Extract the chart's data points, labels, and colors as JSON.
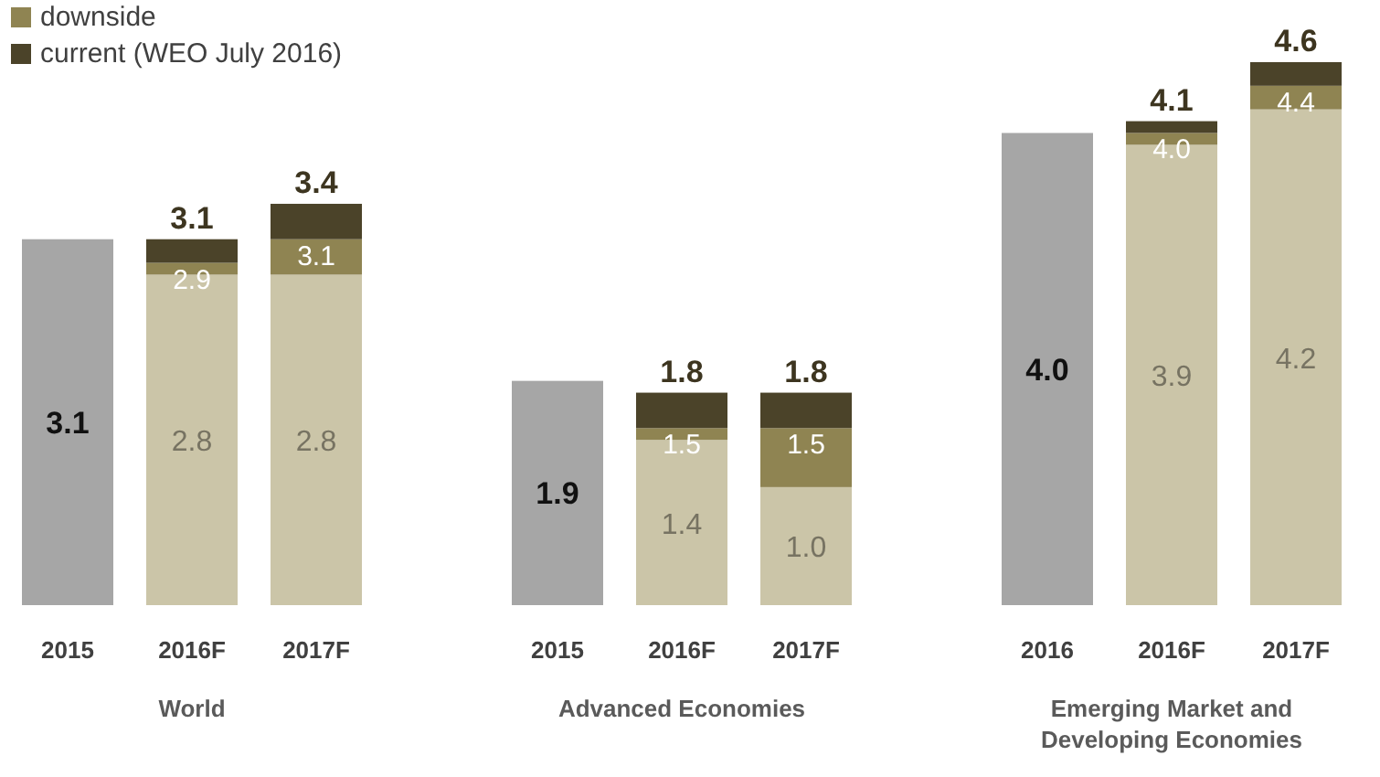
{
  "chart_data": [
    {
      "type": "bar",
      "stacked": true,
      "xlabel": "World",
      "categories": [
        "2015",
        "2016F",
        "2017F"
      ],
      "tick_labels": "x",
      "legend": "top left",
      "series": [
        {
          "color": "#a6a6a6",
          "values": [
            3.1,
            null,
            null
          ],
          "value_labels": [
            "3.1",
            null,
            null
          ]
        },
        {
          "color": "#cbc5a8",
          "values": [
            null,
            2.8,
            2.8
          ],
          "value_labels": [
            null,
            "2.8",
            "2.8"
          ]
        },
        {
          "name": "downside",
          "color": "#8f8452",
          "values": [
            null,
            0.1,
            0.3
          ]
        },
        {
          "name": "current (WEO July 2016)",
          "color": "#4b4329",
          "values": [
            null,
            0.2,
            0.3
          ]
        }
      ],
      "annotations": [
        {
          "text": "2.9",
          "x": "2016F",
          "y": 2.9
        },
        {
          "text": "3.1",
          "x": "2017F",
          "y": 3.1
        }
      ],
      "totals": [
        null,
        "3.1",
        "3.4"
      ]
    },
    {
      "type": "bar",
      "stacked": true,
      "xlabel": "Advanced Economies",
      "categories": [
        "2015",
        "2016F",
        "2017F"
      ],
      "tick_labels": "x",
      "series": [
        {
          "color": "#a6a6a6",
          "values": [
            1.9,
            null,
            null
          ],
          "value_labels": [
            "1.9",
            null,
            null
          ]
        },
        {
          "color": "#cbc5a8",
          "values": [
            null,
            1.4,
            1.0
          ],
          "value_labels": [
            null,
            "1.4",
            "1.0"
          ]
        },
        {
          "color": "#8f8452",
          "values": [
            null,
            0.1,
            0.5
          ]
        },
        {
          "color": "#4b4329",
          "values": [
            null,
            0.3,
            0.3
          ]
        }
      ],
      "annotations": [
        {
          "text": "1.5",
          "x": "2016F",
          "y": 1.5
        },
        {
          "text": "1.5",
          "x": "2017F",
          "y": 1.5
        }
      ],
      "totals": [
        null,
        "1.8",
        "1.8"
      ]
    },
    {
      "type": "bar",
      "stacked": true,
      "xlabel": "Emerging Market and Developing Economies",
      "categories": [
        "2016",
        "2016F",
        "2017F"
      ],
      "tick_labels": "x",
      "series": [
        {
          "color": "#a6a6a6",
          "values": [
            4.0,
            null,
            null
          ],
          "value_labels": [
            "4.0",
            null,
            null
          ]
        },
        {
          "color": "#cbc5a8",
          "values": [
            null,
            3.9,
            4.2
          ],
          "value_labels": [
            null,
            "3.9",
            "4.2"
          ]
        },
        {
          "color": "#8f8452",
          "values": [
            null,
            0.1,
            0.2
          ]
        },
        {
          "color": "#4b4329",
          "values": [
            null,
            0.1,
            0.2
          ]
        }
      ],
      "annotations": [
        {
          "text": "4.0",
          "x": "2016F",
          "y": 4.0
        },
        {
          "text": "4.4",
          "x": "2017F",
          "y": 4.4
        }
      ],
      "totals": [
        null,
        "4.1",
        "4.6"
      ]
    }
  ]
}
